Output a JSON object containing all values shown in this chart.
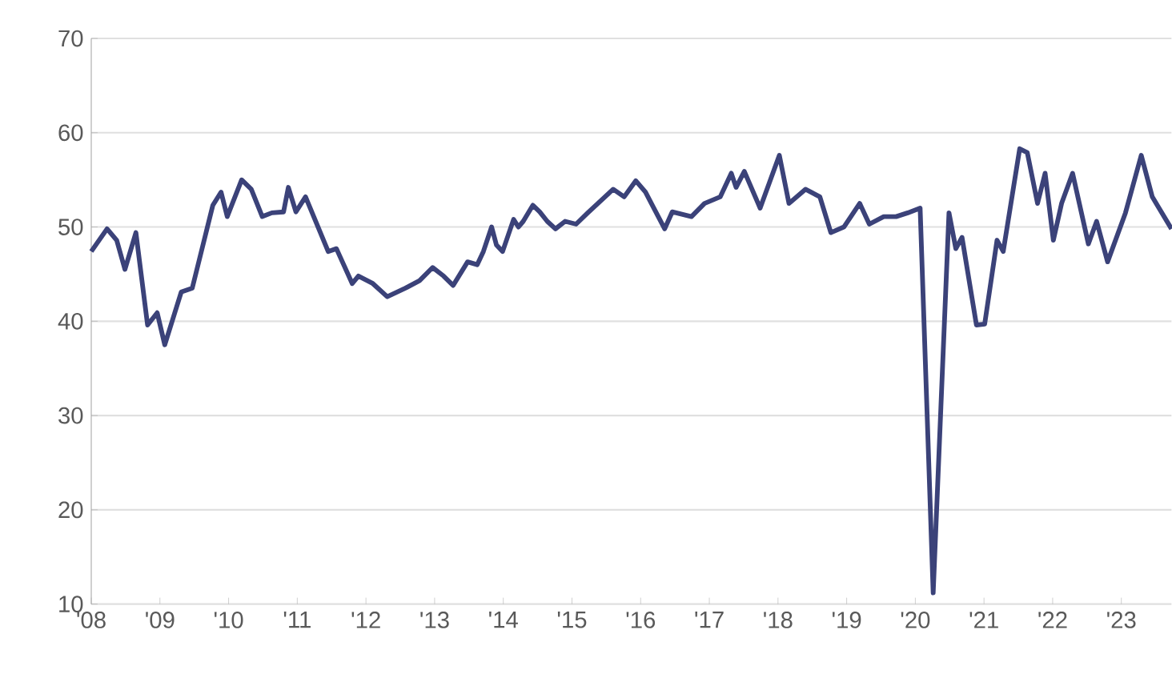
{
  "chart_data": {
    "type": "line",
    "xlim": [
      2008,
      2023.73
    ],
    "ylim": [
      10,
      70
    ],
    "yticks": [
      10,
      20,
      30,
      40,
      50,
      60,
      70
    ],
    "xticks": [
      {
        "value": 2008,
        "label": "'08"
      },
      {
        "value": 2009,
        "label": "'09"
      },
      {
        "value": 2010,
        "label": "'10"
      },
      {
        "value": 2011,
        "label": "'11"
      },
      {
        "value": 2012,
        "label": "'12"
      },
      {
        "value": 2013,
        "label": "'13"
      },
      {
        "value": 2014,
        "label": "'14"
      },
      {
        "value": 2015,
        "label": "'15"
      },
      {
        "value": 2016,
        "label": "'16"
      },
      {
        "value": 2017,
        "label": "'17"
      },
      {
        "value": 2018,
        "label": "'18"
      },
      {
        "value": 2019,
        "label": "'19"
      },
      {
        "value": 2020,
        "label": "'20"
      },
      {
        "value": 2021,
        "label": "'21"
      },
      {
        "value": 2022,
        "label": "'22"
      },
      {
        "value": 2023,
        "label": "'23"
      }
    ],
    "grid": "y",
    "marker": "none",
    "line_style": "solid",
    "x": [
      2008.0,
      2008.23,
      2008.37,
      2008.49,
      2008.65,
      2008.82,
      2008.96,
      2009.07,
      2009.31,
      2009.47,
      2009.77,
      2009.89,
      2009.98,
      2010.19,
      2010.33,
      2010.49,
      2010.63,
      2010.8,
      2010.87,
      2010.98,
      2011.12,
      2011.45,
      2011.57,
      2011.8,
      2011.89,
      2012.1,
      2012.31,
      2012.57,
      2012.78,
      2012.97,
      2013.13,
      2013.27,
      2013.48,
      2013.62,
      2013.71,
      2013.83,
      2013.9,
      2013.99,
      2014.15,
      2014.22,
      2014.29,
      2014.43,
      2014.53,
      2014.64,
      2014.76,
      2014.9,
      2015.06,
      2015.23,
      2015.6,
      2015.76,
      2015.93,
      2016.07,
      2016.35,
      2016.46,
      2016.74,
      2016.93,
      2017.16,
      2017.32,
      2017.39,
      2017.51,
      2017.74,
      2018.02,
      2018.16,
      2018.4,
      2018.61,
      2018.77,
      2018.96,
      2019.19,
      2019.33,
      2019.54,
      2019.72,
      2019.89,
      2020.07,
      2020.26,
      2020.49,
      2020.59,
      2020.68,
      2020.89,
      2021.01,
      2021.19,
      2021.28,
      2021.52,
      2021.63,
      2021.78,
      2021.89,
      2022.01,
      2022.13,
      2022.29,
      2022.52,
      2022.64,
      2022.8,
      2023.06,
      2023.29,
      2023.45,
      2023.73
    ],
    "series": [
      {
        "color": "#3b4279",
        "values": [
          47.4,
          49.8,
          48.6,
          45.5,
          49.4,
          39.6,
          40.9,
          37.5,
          43.1,
          43.5,
          52.3,
          53.7,
          51.1,
          55.0,
          54.0,
          51.1,
          51.5,
          51.6,
          54.2,
          51.6,
          53.2,
          47.4,
          47.7,
          44.0,
          44.8,
          44.0,
          42.6,
          43.5,
          44.3,
          45.7,
          44.8,
          43.8,
          46.3,
          46.0,
          47.4,
          50.0,
          48.1,
          47.4,
          50.8,
          50.0,
          50.6,
          52.3,
          51.6,
          50.6,
          49.8,
          50.6,
          50.3,
          51.5,
          54.0,
          53.2,
          54.9,
          53.7,
          49.8,
          51.6,
          51.1,
          52.5,
          53.2,
          55.7,
          54.2,
          55.9,
          52.0,
          57.6,
          52.5,
          54.0,
          53.2,
          49.4,
          50.0,
          52.5,
          50.3,
          51.1,
          51.1,
          51.5,
          52.0,
          11.2,
          51.5,
          47.7,
          48.9,
          39.6,
          39.7,
          48.6,
          47.4,
          58.3,
          57.9,
          52.5,
          55.7,
          48.6,
          52.5,
          55.7,
          48.2,
          50.6,
          46.3,
          51.5,
          57.6,
          53.2,
          49.8
        ]
      }
    ]
  }
}
